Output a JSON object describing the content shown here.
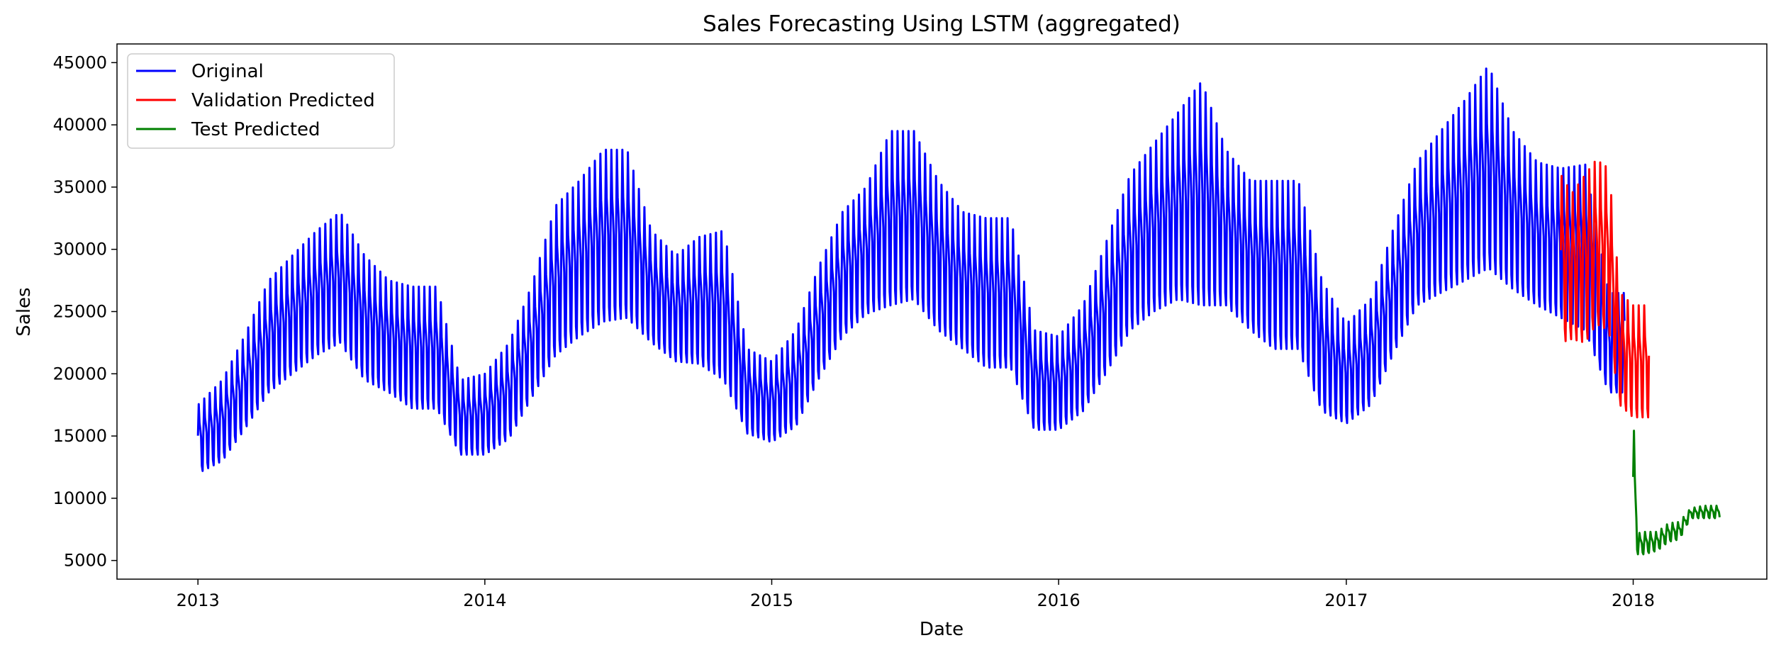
{
  "chart_data": {
    "type": "line",
    "title": "Sales Forecasting Using LSTM (aggregated)",
    "xlabel": "Date",
    "ylabel": "Sales",
    "x_axis_type": "date",
    "xlim": [
      "2012-09-20",
      "2018-06-20"
    ],
    "ylim": [
      3500,
      46500
    ],
    "x_ticks": [
      "2013",
      "2014",
      "2015",
      "2016",
      "2017",
      "2018"
    ],
    "x_tick_dates": [
      "2013-01-01",
      "2014-01-01",
      "2015-01-01",
      "2016-01-01",
      "2017-01-01",
      "2018-01-01"
    ],
    "y_ticks": [
      5000,
      10000,
      15000,
      20000,
      25000,
      30000,
      35000,
      40000,
      45000
    ],
    "grid": false,
    "legend_position": "upper-left",
    "series": [
      {
        "name": "Original",
        "color": "#0000ff",
        "note_weekly_pattern": "daily series; within each week the value peaks on one day and dips on another",
        "x": [
          "2013-01-01",
          "2013-02-01",
          "2013-03-01",
          "2013-04-01",
          "2013-05-01",
          "2013-06-01",
          "2013-07-01",
          "2013-08-01",
          "2013-09-01",
          "2013-10-01",
          "2013-11-01",
          "2013-12-01",
          "2014-01-01",
          "2014-02-01",
          "2014-03-01",
          "2014-04-01",
          "2014-05-01",
          "2014-06-01",
          "2014-07-01",
          "2014-08-01",
          "2014-09-01",
          "2014-10-01",
          "2014-11-01",
          "2014-12-01",
          "2015-01-01",
          "2015-02-01",
          "2015-03-01",
          "2015-04-01",
          "2015-05-01",
          "2015-06-01",
          "2015-07-01",
          "2015-08-01",
          "2015-09-01",
          "2015-10-01",
          "2015-11-01",
          "2015-12-01",
          "2016-01-01",
          "2016-02-01",
          "2016-03-01",
          "2016-04-01",
          "2016-05-01",
          "2016-06-01",
          "2016-07-01",
          "2016-08-01",
          "2016-09-01",
          "2016-10-01",
          "2016-11-01",
          "2016-12-01",
          "2017-01-01",
          "2017-02-01",
          "2017-03-01",
          "2017-04-01",
          "2017-05-01",
          "2017-06-01",
          "2017-07-01",
          "2017-08-01",
          "2017-09-01",
          "2017-10-01",
          "2017-11-01",
          "2017-12-01"
        ],
        "high": [
          17500,
          19500,
          23000,
          27500,
          29500,
          31500,
          33000,
          29500,
          27500,
          27000,
          27000,
          19500,
          20000,
          22500,
          27000,
          33500,
          35500,
          38000,
          38000,
          31500,
          29500,
          31000,
          31500,
          22000,
          21000,
          23500,
          28500,
          33000,
          35000,
          39500,
          39500,
          35500,
          33000,
          32500,
          32500,
          23500,
          23000,
          25500,
          30500,
          36000,
          38500,
          41000,
          43500,
          38000,
          35500,
          35500,
          35500,
          27500,
          24000,
          26000,
          31500,
          37000,
          39500,
          42000,
          44800,
          39500,
          37000,
          36500,
          36800,
          26500
        ],
        "low": [
          12000,
          13000,
          15500,
          18500,
          20000,
          21500,
          22500,
          19500,
          18500,
          17200,
          17200,
          13500,
          13500,
          14800,
          18000,
          21500,
          23000,
          24200,
          24500,
          22500,
          21000,
          20800,
          19500,
          15200,
          14500,
          15800,
          19500,
          23000,
          24800,
          25500,
          26000,
          23500,
          22000,
          20500,
          20500,
          15500,
          15500,
          17000,
          20000,
          23500,
          25000,
          26000,
          25500,
          25500,
          23500,
          22000,
          22000,
          17000,
          16000,
          17500,
          21500,
          25500,
          26500,
          27500,
          28500,
          26800,
          25500,
          24500,
          23500,
          18500
        ]
      },
      {
        "name": "Validation Predicted",
        "color": "#ff0000",
        "x": [
          "2017-10-01",
          "2017-10-15",
          "2017-11-01",
          "2017-11-15",
          "2017-12-01",
          "2017-12-15",
          "2018-01-01"
        ],
        "high": [
          36000,
          34500,
          36000,
          37200,
          36500,
          26500,
          25500
        ],
        "low": [
          22500,
          22800,
          22500,
          24000,
          23500,
          17500,
          16500
        ]
      },
      {
        "name": "Test Predicted",
        "color": "#008000",
        "x": [
          "2018-01-01",
          "2018-01-08",
          "2018-01-15",
          "2018-02-01",
          "2018-02-15",
          "2018-03-01",
          "2018-03-15",
          "2018-04-01"
        ],
        "high": [
          16800,
          7200,
          7300,
          7300,
          8000,
          8100,
          9200,
          9400
        ],
        "low": [
          5500,
          5500,
          5500,
          5800,
          6500,
          6700,
          8400,
          8400
        ]
      }
    ]
  }
}
